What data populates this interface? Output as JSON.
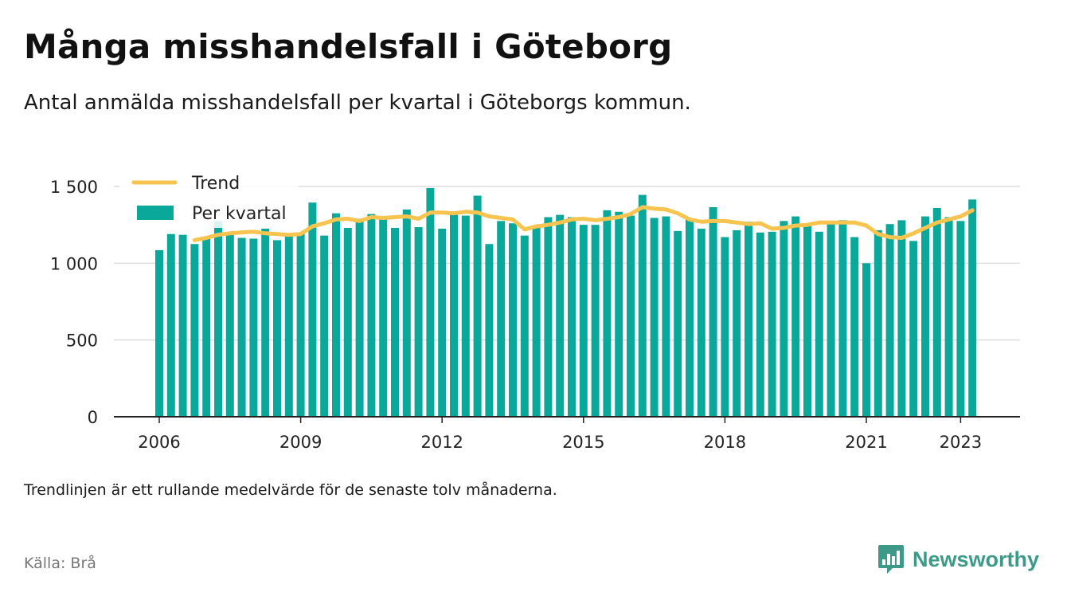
{
  "header": {
    "title": "Många misshandelsfall i Göteborg",
    "subtitle": "Antal anmälda misshandelsfall per kvartal i Göteborgs kommun."
  },
  "footer": {
    "note": "Trendlinjen är ett rullande medelvärde för de senaste tolv månaderna.",
    "source": "Källa: Brå",
    "brand": "Newsworthy"
  },
  "colors": {
    "bars": "#0aa89a",
    "trend": "#f7c44f",
    "grid": "#dddddd",
    "axis": "#222222",
    "brand": "#3d9a89"
  },
  "chart_data": {
    "type": "bar",
    "legend": {
      "trend": "Trend",
      "bars": "Per kvartal",
      "position": "top-left"
    },
    "x_ticks": [
      "2006",
      "2009",
      "2012",
      "2015",
      "2018",
      "2021",
      "2023"
    ],
    "y_ticks": [
      "0",
      "500",
      "1 000",
      "1 500"
    ],
    "ylim": [
      0,
      1500
    ],
    "grid": true,
    "series": [
      {
        "name": "Per kvartal",
        "type": "bar",
        "x": [
          "2006-Q1",
          "2006-Q2",
          "2006-Q3",
          "2006-Q4",
          "2007-Q1",
          "2007-Q2",
          "2007-Q3",
          "2007-Q4",
          "2008-Q1",
          "2008-Q2",
          "2008-Q3",
          "2008-Q4",
          "2009-Q1",
          "2009-Q2",
          "2009-Q3",
          "2009-Q4",
          "2010-Q1",
          "2010-Q2",
          "2010-Q3",
          "2010-Q4",
          "2011-Q1",
          "2011-Q2",
          "2011-Q3",
          "2011-Q4",
          "2012-Q1",
          "2012-Q2",
          "2012-Q3",
          "2012-Q4",
          "2013-Q1",
          "2013-Q2",
          "2013-Q3",
          "2013-Q4",
          "2014-Q1",
          "2014-Q2",
          "2014-Q3",
          "2014-Q4",
          "2015-Q1",
          "2015-Q2",
          "2015-Q3",
          "2015-Q4",
          "2016-Q1",
          "2016-Q2",
          "2016-Q3",
          "2016-Q4",
          "2017-Q1",
          "2017-Q2",
          "2017-Q3",
          "2017-Q4",
          "2018-Q1",
          "2018-Q2",
          "2018-Q3",
          "2018-Q4",
          "2019-Q1",
          "2019-Q2",
          "2019-Q3",
          "2019-Q4",
          "2020-Q1",
          "2020-Q2",
          "2020-Q3",
          "2020-Q4",
          "2021-Q1",
          "2021-Q2",
          "2021-Q3",
          "2021-Q4",
          "2022-Q1",
          "2022-Q2",
          "2022-Q3",
          "2022-Q4",
          "2023-Q1",
          "2023-Q2"
        ],
        "values": [
          1085,
          1190,
          1185,
          1125,
          1165,
          1275,
          1200,
          1165,
          1160,
          1225,
          1150,
          1180,
          1190,
          1395,
          1180,
          1325,
          1230,
          1290,
          1320,
          1295,
          1230,
          1350,
          1235,
          1490,
          1225,
          1320,
          1310,
          1440,
          1125,
          1275,
          1260,
          1180,
          1230,
          1300,
          1315,
          1300,
          1250,
          1250,
          1345,
          1335,
          1310,
          1445,
          1295,
          1305,
          1210,
          1285,
          1225,
          1365,
          1170,
          1215,
          1270,
          1200,
          1205,
          1275,
          1305,
          1255,
          1205,
          1265,
          1280,
          1170,
          1000,
          1215,
          1255,
          1280,
          1145,
          1305,
          1360,
          1300,
          1275,
          1415
        ]
      },
      {
        "name": "Trend",
        "type": "line",
        "x": [
          "2006-Q4",
          "2007-Q1",
          "2007-Q2",
          "2007-Q3",
          "2007-Q4",
          "2008-Q1",
          "2008-Q2",
          "2008-Q3",
          "2008-Q4",
          "2009-Q1",
          "2009-Q2",
          "2009-Q3",
          "2009-Q4",
          "2010-Q1",
          "2010-Q2",
          "2010-Q3",
          "2010-Q4",
          "2011-Q1",
          "2011-Q2",
          "2011-Q3",
          "2011-Q4",
          "2012-Q1",
          "2012-Q2",
          "2012-Q3",
          "2012-Q4",
          "2013-Q1",
          "2013-Q2",
          "2013-Q3",
          "2013-Q4",
          "2014-Q1",
          "2014-Q2",
          "2014-Q3",
          "2014-Q4",
          "2015-Q1",
          "2015-Q2",
          "2015-Q3",
          "2015-Q4",
          "2016-Q1",
          "2016-Q2",
          "2016-Q3",
          "2016-Q4",
          "2017-Q1",
          "2017-Q2",
          "2017-Q3",
          "2017-Q4",
          "2018-Q1",
          "2018-Q2",
          "2018-Q3",
          "2018-Q4",
          "2019-Q1",
          "2019-Q2",
          "2019-Q3",
          "2019-Q4",
          "2020-Q1",
          "2020-Q2",
          "2020-Q3",
          "2020-Q4",
          "2021-Q1",
          "2021-Q2",
          "2021-Q3",
          "2021-Q4",
          "2022-Q1",
          "2022-Q2",
          "2022-Q3",
          "2022-Q4",
          "2023-Q1",
          "2023-Q2"
        ],
        "values": [
          1150,
          1165,
          1185,
          1195,
          1200,
          1205,
          1195,
          1190,
          1185,
          1190,
          1240,
          1260,
          1285,
          1290,
          1275,
          1300,
          1295,
          1300,
          1305,
          1290,
          1330,
          1330,
          1325,
          1335,
          1330,
          1305,
          1295,
          1285,
          1220,
          1240,
          1250,
          1265,
          1285,
          1290,
          1280,
          1290,
          1300,
          1320,
          1365,
          1355,
          1350,
          1325,
          1285,
          1270,
          1275,
          1275,
          1265,
          1255,
          1260,
          1225,
          1230,
          1245,
          1250,
          1265,
          1265,
          1265,
          1265,
          1245,
          1190,
          1170,
          1165,
          1195,
          1230,
          1265,
          1285,
          1305,
          1345
        ]
      }
    ]
  }
}
